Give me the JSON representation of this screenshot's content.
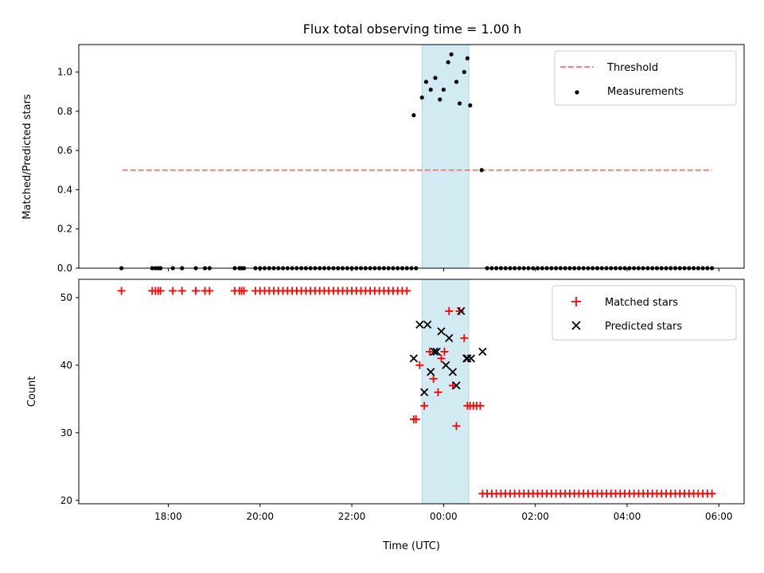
{
  "chart_data": [
    {
      "type": "scatter",
      "title": "Flux total observing time = 1.00 h",
      "ylabel": "Matched/Predicted stars",
      "ylim": [
        0,
        1.14
      ],
      "yticks": [
        "0.0",
        "0.2",
        "0.4",
        "0.6",
        "0.8",
        "1.0"
      ],
      "shaded_region": {
        "x_start": 23.53,
        "x_end": 24.55,
        "color": "#add8e6"
      },
      "legend_position": "upper right",
      "threshold": {
        "name": "Threshold",
        "value": 0.5,
        "x_start": 17.0,
        "x_end": 29.85,
        "color": "#ff6f6f"
      },
      "series": [
        {
          "name": "Measurements",
          "color": "#000000",
          "x": [
            16.98,
            17.65,
            17.72,
            17.78,
            17.83,
            18.1,
            18.3,
            18.6,
            18.8,
            18.9,
            19.45,
            19.55,
            19.6,
            19.65,
            19.9,
            20.0,
            20.1,
            20.2,
            20.3,
            20.4,
            20.5,
            20.6,
            20.7,
            20.8,
            20.9,
            21.0,
            21.1,
            21.2,
            21.3,
            21.4,
            21.5,
            21.6,
            21.7,
            21.8,
            21.9,
            22.0,
            22.1,
            22.2,
            22.3,
            22.4,
            22.5,
            22.6,
            22.7,
            22.8,
            22.9,
            23.0,
            23.1,
            23.2,
            23.3,
            23.4,
            23.35,
            23.53,
            23.62,
            23.72,
            23.82,
            23.92,
            24.0,
            24.1,
            24.17,
            24.28,
            24.35,
            24.45,
            24.52,
            24.58,
            24.83,
            24.95,
            25.05,
            25.15,
            25.25,
            25.35,
            25.45,
            25.55,
            25.65,
            25.75,
            25.85,
            25.95,
            26.05,
            26.15,
            26.25,
            26.35,
            26.45,
            26.55,
            26.65,
            26.75,
            26.85,
            26.95,
            27.05,
            27.15,
            27.25,
            27.35,
            27.45,
            27.55,
            27.65,
            27.75,
            27.85,
            27.95,
            28.05,
            28.15,
            28.25,
            28.35,
            28.45,
            28.55,
            28.65,
            28.75,
            28.85,
            28.95,
            29.05,
            29.15,
            29.25,
            29.35,
            29.45,
            29.55,
            29.65,
            29.75,
            29.85
          ],
          "y": [
            0,
            0,
            0,
            0,
            0,
            0,
            0,
            0,
            0,
            0,
            0,
            0,
            0,
            0,
            0,
            0,
            0,
            0,
            0,
            0,
            0,
            0,
            0,
            0,
            0,
            0,
            0,
            0,
            0,
            0,
            0,
            0,
            0,
            0,
            0,
            0,
            0,
            0,
            0,
            0,
            0,
            0,
            0,
            0,
            0,
            0,
            0,
            0,
            0,
            0,
            0.78,
            0.87,
            0.95,
            0.91,
            0.97,
            0.86,
            0.91,
            1.05,
            1.09,
            0.95,
            0.84,
            1.0,
            1.07,
            0.83,
            0.5,
            0,
            0,
            0,
            0,
            0,
            0,
            0,
            0,
            0,
            0,
            0,
            0,
            0,
            0,
            0,
            0,
            0,
            0,
            0,
            0,
            0,
            0,
            0,
            0,
            0,
            0,
            0,
            0,
            0,
            0,
            0,
            0,
            0,
            0,
            0,
            0,
            0,
            0,
            0,
            0,
            0,
            0,
            0,
            0,
            0,
            0,
            0,
            0,
            0,
            0
          ]
        }
      ]
    },
    {
      "type": "scatter",
      "xlabel": "Time (UTC)",
      "ylabel": "Count",
      "xlim": [
        16.05,
        30.55
      ],
      "ylim": [
        19.5,
        52.7
      ],
      "xticks": [
        {
          "value": 18,
          "label": "18:00"
        },
        {
          "value": 20,
          "label": "20:00"
        },
        {
          "value": 22,
          "label": "22:00"
        },
        {
          "value": 24,
          "label": "00:00"
        },
        {
          "value": 26,
          "label": "02:00"
        },
        {
          "value": 28,
          "label": "04:00"
        },
        {
          "value": 30,
          "label": "06:00"
        }
      ],
      "yticks": [
        "20",
        "30",
        "40",
        "50"
      ],
      "shaded_region": {
        "x_start": 23.53,
        "x_end": 24.55,
        "color": "#add8e6"
      },
      "legend_position": "upper right",
      "series": [
        {
          "name": "Matched stars",
          "color": "#ff0000",
          "marker": "+",
          "x": [
            16.98,
            17.65,
            17.72,
            17.78,
            17.83,
            18.1,
            18.3,
            18.6,
            18.8,
            18.9,
            19.45,
            19.55,
            19.6,
            19.65,
            19.9,
            20.0,
            20.1,
            20.2,
            20.3,
            20.4,
            20.5,
            20.6,
            20.7,
            20.8,
            20.9,
            21.0,
            21.1,
            21.2,
            21.3,
            21.4,
            21.5,
            21.6,
            21.7,
            21.8,
            21.9,
            22.0,
            22.1,
            22.2,
            22.3,
            22.4,
            22.5,
            22.6,
            22.7,
            22.8,
            22.9,
            23.0,
            23.1,
            23.2,
            23.35,
            23.4,
            23.48,
            23.58,
            23.7,
            23.78,
            23.88,
            23.95,
            24.02,
            24.12,
            24.2,
            24.28,
            24.35,
            24.45,
            24.52,
            24.58,
            24.65,
            24.72,
            24.8,
            24.85,
            24.95,
            25.05,
            25.15,
            25.25,
            25.35,
            25.45,
            25.55,
            25.65,
            25.75,
            25.85,
            25.95,
            26.05,
            26.15,
            26.25,
            26.35,
            26.45,
            26.55,
            26.65,
            26.75,
            26.85,
            26.95,
            27.05,
            27.15,
            27.25,
            27.35,
            27.45,
            27.55,
            27.65,
            27.75,
            27.85,
            27.95,
            28.05,
            28.15,
            28.25,
            28.35,
            28.45,
            28.55,
            28.65,
            28.75,
            28.85,
            28.95,
            29.05,
            29.15,
            29.25,
            29.35,
            29.45,
            29.55,
            29.65,
            29.75,
            29.85
          ],
          "y": [
            51,
            51,
            51,
            51,
            51,
            51,
            51,
            51,
            51,
            51,
            51,
            51,
            51,
            51,
            51,
            51,
            51,
            51,
            51,
            51,
            51,
            51,
            51,
            51,
            51,
            51,
            51,
            51,
            51,
            51,
            51,
            51,
            51,
            51,
            51,
            51,
            51,
            51,
            51,
            51,
            51,
            51,
            51,
            51,
            51,
            51,
            51,
            51,
            32,
            32,
            40,
            34,
            42,
            38,
            36,
            41,
            42,
            48,
            37,
            31,
            48,
            44,
            34,
            34,
            34,
            34,
            34,
            21,
            21,
            21,
            21,
            21,
            21,
            21,
            21,
            21,
            21,
            21,
            21,
            21,
            21,
            21,
            21,
            21,
            21,
            21,
            21,
            21,
            21,
            21,
            21,
            21,
            21,
            21,
            21,
            21,
            21,
            21,
            21,
            21,
            21,
            21,
            21,
            21,
            21,
            21,
            21,
            21,
            21,
            21,
            21,
            21,
            21,
            21,
            21,
            21,
            21,
            21
          ]
        },
        {
          "name": "Predicted stars",
          "color": "#000000",
          "marker": "x",
          "x": [
            23.35,
            23.48,
            23.58,
            23.65,
            23.72,
            23.8,
            23.85,
            23.95,
            24.05,
            24.12,
            24.2,
            24.28,
            24.38,
            24.5,
            24.52,
            24.6,
            24.85
          ],
          "y": [
            41,
            46,
            36,
            46,
            39,
            42,
            42,
            45,
            40,
            44,
            39,
            37,
            48,
            41,
            41,
            41,
            42
          ]
        }
      ]
    }
  ]
}
